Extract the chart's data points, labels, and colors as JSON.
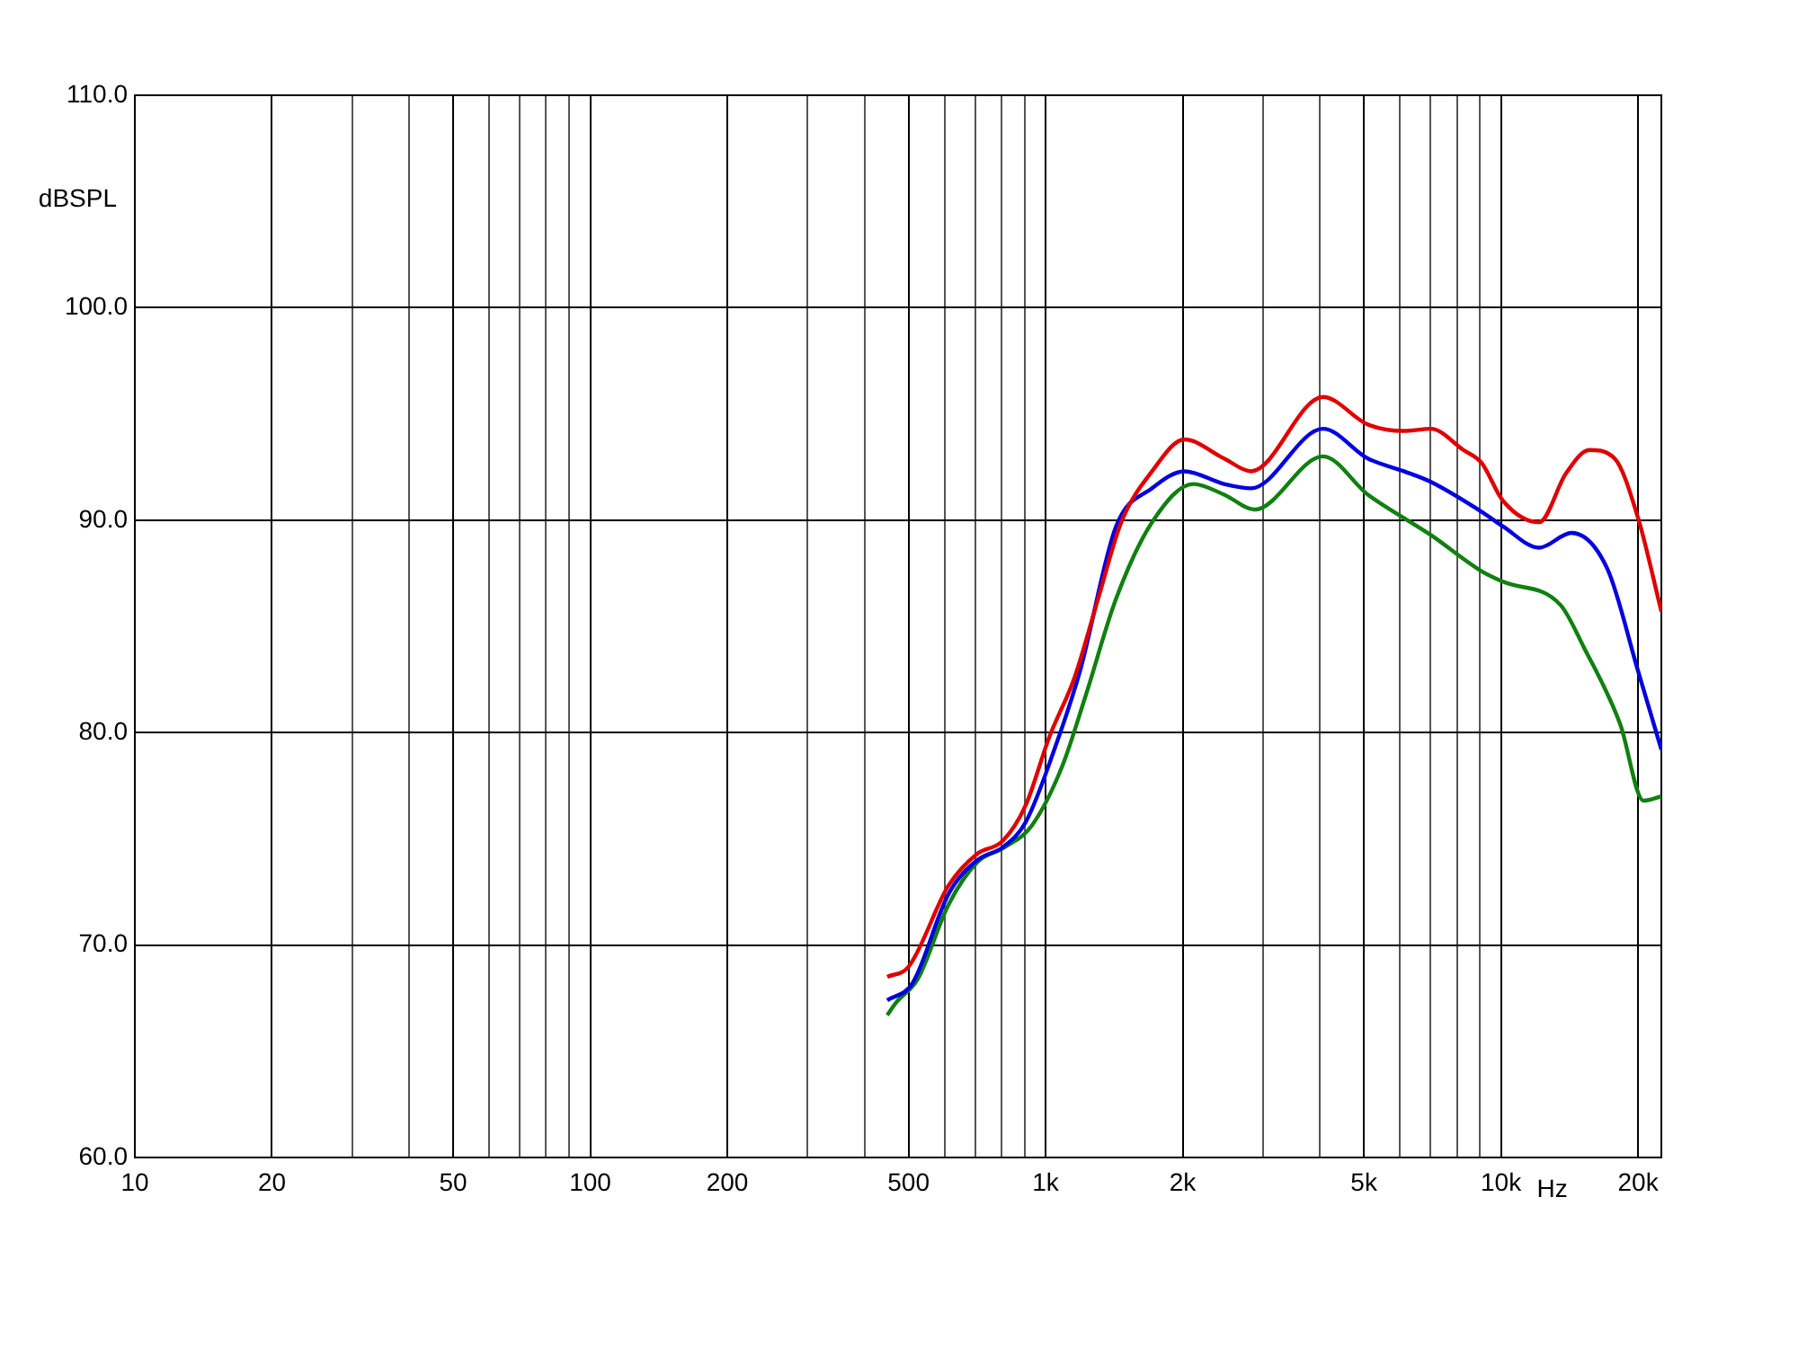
{
  "chart_data": {
    "type": "line",
    "xlabel": "Hz",
    "ylabel": "dBSPL",
    "log": "x",
    "grid": true,
    "legend": false,
    "marker": "none",
    "line_style": "solid",
    "xlim": [
      10,
      22500
    ],
    "ylim": [
      60,
      110
    ],
    "xticks": [
      10,
      20,
      {
        "value": 30,
        "label": null
      },
      {
        "value": 40,
        "label": null
      },
      50,
      {
        "value": 60,
        "label": null
      },
      {
        "value": 70,
        "label": null
      },
      {
        "value": 80,
        "label": null
      },
      {
        "value": 90,
        "label": null
      },
      100,
      200,
      {
        "value": 300,
        "label": null
      },
      {
        "value": 400,
        "label": null
      },
      500,
      {
        "value": 600,
        "label": null
      },
      {
        "value": 700,
        "label": null
      },
      {
        "value": 800,
        "label": null
      },
      {
        "value": 900,
        "label": null
      },
      {
        "value": 1000,
        "label": "1k"
      },
      {
        "value": 2000,
        "label": "2k"
      },
      {
        "value": 3000,
        "label": null
      },
      {
        "value": 4000,
        "label": null
      },
      {
        "value": 5000,
        "label": "5k"
      },
      {
        "value": 6000,
        "label": null
      },
      {
        "value": 7000,
        "label": null
      },
      {
        "value": 8000,
        "label": null
      },
      {
        "value": 9000,
        "label": null
      },
      {
        "value": 10000,
        "label": "10k"
      },
      {
        "value": 20000,
        "label": "20k"
      }
    ],
    "yticks": [
      {
        "value": 60,
        "label": "60.0"
      },
      {
        "value": 70,
        "label": "70.0"
      },
      {
        "value": 80,
        "label": "80.0"
      },
      {
        "value": 90,
        "label": "90.0"
      },
      {
        "value": 100,
        "label": "100.0"
      },
      {
        "value": 110,
        "label": "110.0"
      }
    ],
    "series": [
      {
        "color": "#e00000",
        "x": [
          449,
          501,
          612,
          708,
          805,
          905,
          1019,
          1158,
          1304,
          1466,
          1713,
          2018,
          2467,
          2826,
          4066,
          5102,
          6120,
          7015,
          8271,
          9061,
          10110,
          12130,
          13890,
          15640,
          17770,
          20000,
          22500
        ],
        "values": [
          68.5,
          69.0,
          72.8,
          74.3,
          74.9,
          76.6,
          79.8,
          82.6,
          86.3,
          89.9,
          92.3,
          93.8,
          92.9,
          92.3,
          95.8,
          94.5,
          94.2,
          94.3,
          93.3,
          92.7,
          90.9,
          89.9,
          92.2,
          93.3,
          92.9,
          90.1,
          85.7
        ]
      },
      {
        "color": "#0000e0",
        "x": [
          449,
          510,
          612,
          708,
          805,
          905,
          1057,
          1190,
          1428,
          1713,
          2018,
          2467,
          2826,
          4066,
          5102,
          6120,
          7015,
          9061,
          10110,
          12130,
          14280,
          17130,
          20000,
          22500
        ],
        "values": [
          67.4,
          68.2,
          72.4,
          74.0,
          74.6,
          75.8,
          79.5,
          82.9,
          89.7,
          91.5,
          92.3,
          91.7,
          91.5,
          94.3,
          92.9,
          92.3,
          91.8,
          90.4,
          89.7,
          88.7,
          89.4,
          87.7,
          82.9,
          79.2
        ]
      },
      {
        "color": "#108010",
        "x": [
          449,
          470,
          524,
          612,
          708,
          812,
          931,
          1087,
          1223,
          1428,
          1713,
          2112,
          2467,
          2878,
          4066,
          5102,
          6120,
          7015,
          9061,
          10110,
          13520,
          15220,
          18270,
          20560,
          22500
        ],
        "values": [
          66.7,
          67.3,
          68.4,
          71.9,
          73.9,
          74.6,
          75.6,
          78.4,
          81.7,
          86.3,
          89.9,
          91.7,
          91.2,
          90.5,
          93.0,
          91.2,
          90.1,
          89.3,
          87.6,
          87.1,
          86.0,
          84.0,
          80.4,
          76.8,
          77.0
        ]
      }
    ]
  }
}
